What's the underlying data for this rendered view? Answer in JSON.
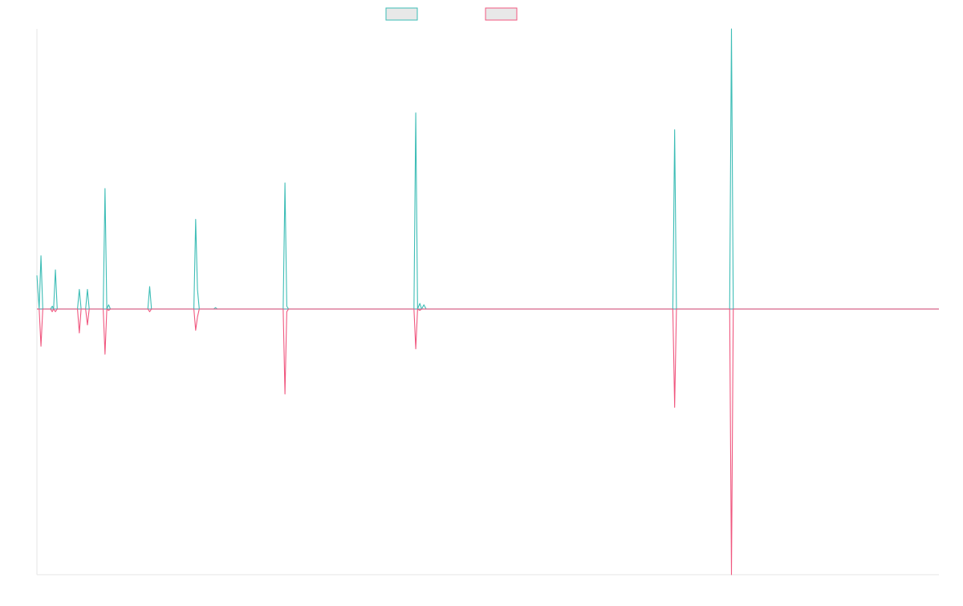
{
  "chart_data": {
    "type": "line",
    "title": "",
    "xlabel": "",
    "ylabel": "",
    "grid": false,
    "legend_position": "top-center",
    "ylim": [
      -1,
      1
    ],
    "xlim": [
      0,
      100
    ],
    "colors": {
      "series_a": "#3dbdb6",
      "series_b": "#f0577f",
      "zero_line": "#7a9bb0",
      "axis": "#e6e6e6",
      "legend_fill": "#e8e8e8"
    },
    "series": [
      {
        "name": "",
        "color": "#3dbdb6",
        "points": [
          [
            0.0,
            0.12
          ],
          [
            0.25,
            0.0
          ],
          [
            0.45,
            0.19
          ],
          [
            0.65,
            0.0
          ],
          [
            1.5,
            0.0
          ],
          [
            1.7,
            0.01
          ],
          [
            1.85,
            0.0
          ],
          [
            2.05,
            0.14
          ],
          [
            2.25,
            0.0
          ],
          [
            4.5,
            0.0
          ],
          [
            4.7,
            0.07
          ],
          [
            4.9,
            0.0
          ],
          [
            5.4,
            0.0
          ],
          [
            5.6,
            0.07
          ],
          [
            5.8,
            0.0
          ],
          [
            7.35,
            0.0
          ],
          [
            7.55,
            0.43
          ],
          [
            7.75,
            0.0
          ],
          [
            7.95,
            0.015
          ],
          [
            8.15,
            0.0
          ],
          [
            12.3,
            0.0
          ],
          [
            12.5,
            0.08
          ],
          [
            12.7,
            0.0
          ],
          [
            17.4,
            0.0
          ],
          [
            17.6,
            0.32
          ],
          [
            17.8,
            0.07
          ],
          [
            18.0,
            0.0
          ],
          [
            19.6,
            0.0
          ],
          [
            19.8,
            0.005
          ],
          [
            20.0,
            0.0
          ],
          [
            27.3,
            0.0
          ],
          [
            27.5,
            0.45
          ],
          [
            27.7,
            0.01
          ],
          [
            27.9,
            0.0
          ],
          [
            41.8,
            0.0
          ],
          [
            42.0,
            0.7
          ],
          [
            42.2,
            0.0
          ],
          [
            42.45,
            0.02
          ],
          [
            42.65,
            0.0
          ],
          [
            42.9,
            0.015
          ],
          [
            43.15,
            0.0
          ],
          [
            70.5,
            0.0
          ],
          [
            70.7,
            0.64
          ],
          [
            70.9,
            0.0
          ],
          [
            76.8,
            0.0
          ],
          [
            77.0,
            1.05
          ],
          [
            77.2,
            0.0
          ],
          [
            100.0,
            0.0
          ]
        ]
      },
      {
        "name": "",
        "color": "#f0577f",
        "points": [
          [
            0.0,
            0.0
          ],
          [
            0.25,
            0.0
          ],
          [
            0.45,
            -0.14
          ],
          [
            0.65,
            0.0
          ],
          [
            1.5,
            0.0
          ],
          [
            1.7,
            -0.01
          ],
          [
            1.85,
            0.0
          ],
          [
            2.05,
            -0.01
          ],
          [
            2.25,
            0.0
          ],
          [
            4.5,
            0.0
          ],
          [
            4.7,
            -0.09
          ],
          [
            4.9,
            0.0
          ],
          [
            5.4,
            0.0
          ],
          [
            5.6,
            -0.06
          ],
          [
            5.8,
            0.0
          ],
          [
            7.35,
            0.0
          ],
          [
            7.55,
            -0.17
          ],
          [
            7.75,
            0.0
          ],
          [
            7.95,
            -0.005
          ],
          [
            8.15,
            0.0
          ],
          [
            12.3,
            0.0
          ],
          [
            12.5,
            -0.01
          ],
          [
            12.7,
            0.0
          ],
          [
            17.4,
            0.0
          ],
          [
            17.6,
            -0.08
          ],
          [
            17.8,
            -0.03
          ],
          [
            18.0,
            0.0
          ],
          [
            19.6,
            0.0
          ],
          [
            19.8,
            0.0
          ],
          [
            20.0,
            0.0
          ],
          [
            27.3,
            0.0
          ],
          [
            27.5,
            -0.32
          ],
          [
            27.7,
            -0.01
          ],
          [
            27.9,
            0.0
          ],
          [
            41.8,
            0.0
          ],
          [
            42.0,
            -0.15
          ],
          [
            42.2,
            0.0
          ],
          [
            42.45,
            -0.005
          ],
          [
            42.65,
            0.0
          ],
          [
            42.9,
            0.0
          ],
          [
            43.15,
            0.0
          ],
          [
            70.5,
            0.0
          ],
          [
            70.7,
            -0.37
          ],
          [
            70.9,
            0.0
          ],
          [
            76.8,
            0.0
          ],
          [
            77.0,
            -1.0
          ],
          [
            77.2,
            0.0
          ],
          [
            100.0,
            0.0
          ]
        ]
      }
    ]
  }
}
